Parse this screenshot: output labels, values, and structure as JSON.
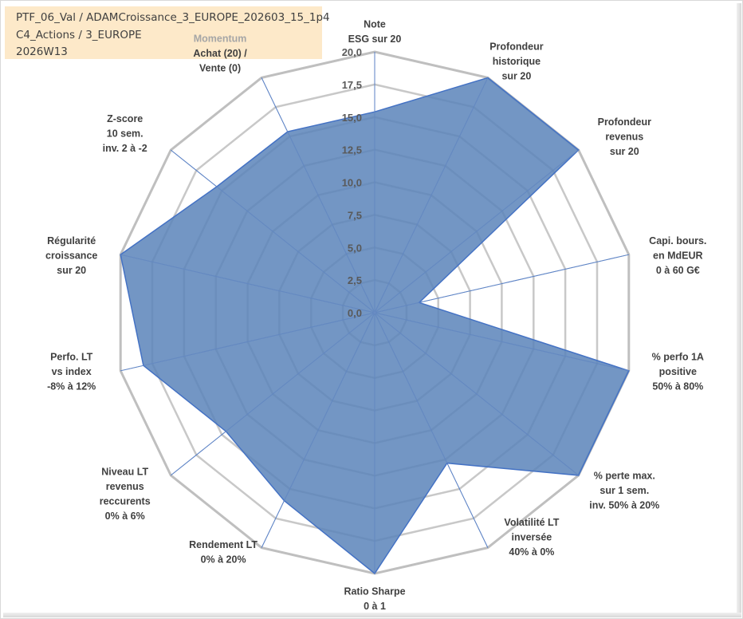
{
  "info": {
    "line1": "PTF_06_Val / ADAMCroissance_3_EUROPE_202603_15_1p4",
    "line2": "C4_Actions / 3_EUROPE",
    "line3": "2026W13"
  },
  "chart_data": {
    "type": "radar",
    "title": "",
    "rlim": [
      0,
      20
    ],
    "ticks": [
      "0,0",
      "2,5",
      "5,0",
      "7,5",
      "10,0",
      "12,5",
      "15,0",
      "17,5",
      "20,0"
    ],
    "tick_values": [
      0,
      2.5,
      5,
      7.5,
      10,
      12.5,
      15,
      17.5,
      20
    ],
    "grid": true,
    "colors": {
      "fill": "#5b84ba",
      "stroke": "#4472c4",
      "ring_outer": "#bfbfbf",
      "ring_inner": "#c8c8c8",
      "spoke": "#4472c4",
      "momentum_label": "#a6a6a6"
    },
    "categories": [
      {
        "label": [
          "Note",
          "ESG sur 20"
        ],
        "value": 15.4
      },
      {
        "label": [
          "Profondeur",
          "historique",
          "sur 20"
        ],
        "value": 20
      },
      {
        "label": [
          "Profondeur",
          "revenus",
          "sur 20"
        ],
        "value": 20
      },
      {
        "label": [
          "Capi. bours.",
          "en MdEUR",
          "0 à 60 G€"
        ],
        "value": 3.5
      },
      {
        "label": [
          "% perfo 1A",
          "positive",
          "50% à 80%"
        ],
        "value": 20
      },
      {
        "label": [
          "% perte max.",
          "sur 1 sem.",
          "inv. 50% à 20%"
        ],
        "value": 20
      },
      {
        "label": [
          "Volatilité LT",
          "inversée",
          "40% à 0%"
        ],
        "value": 12.8
      },
      {
        "label": [
          "Ratio Sharpe",
          "0 à 1"
        ],
        "value": 20
      },
      {
        "label": [
          "Rendement LT",
          "0% à 20%"
        ],
        "value": 16
      },
      {
        "label": [
          "Niveau LT",
          "revenus",
          "reccurents",
          "0% à 6%"
        ],
        "value": 14.6
      },
      {
        "label": [
          "Perfo. LT",
          "vs index",
          "-8% à 12%"
        ],
        "value": 18.2
      },
      {
        "label": [
          "Régularité",
          "croissance",
          "sur 20"
        ],
        "value": 20
      },
      {
        "label": [
          "Z-score",
          "10 sem.",
          "inv. 2 à -2"
        ],
        "value": 15.5
      },
      {
        "label": [
          "Achat (20) /",
          "Vente (0)"
        ],
        "value": 15.4,
        "header": "Momentum"
      }
    ]
  }
}
